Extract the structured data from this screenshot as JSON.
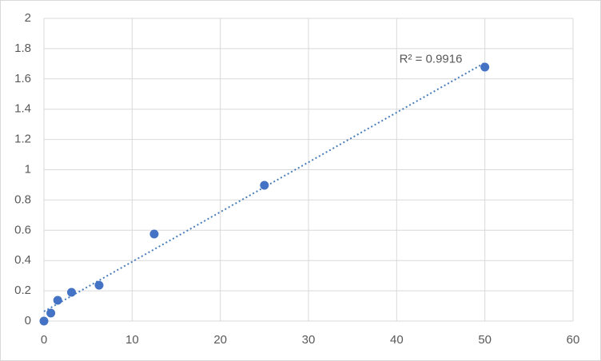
{
  "chart_data": {
    "type": "scatter",
    "x": [
      0,
      0.78,
      1.56,
      3.125,
      6.25,
      12.5,
      25,
      50
    ],
    "values": [
      0,
      0.053,
      0.137,
      0.19,
      0.237,
      0.575,
      0.897,
      1.678
    ],
    "color": "#4472c4",
    "trendline": {
      "type": "linear",
      "color": "#4a7ebb",
      "annotation": "R² = 0.9916"
    },
    "xlim": [
      0,
      60
    ],
    "xticks": [
      0,
      10,
      20,
      30,
      40,
      50,
      60
    ],
    "ylim": [
      0,
      2
    ],
    "yticks": [
      0,
      0.2,
      0.4,
      0.6,
      0.8,
      1,
      1.2,
      1.4,
      1.6,
      1.8,
      2
    ],
    "grid": true
  }
}
